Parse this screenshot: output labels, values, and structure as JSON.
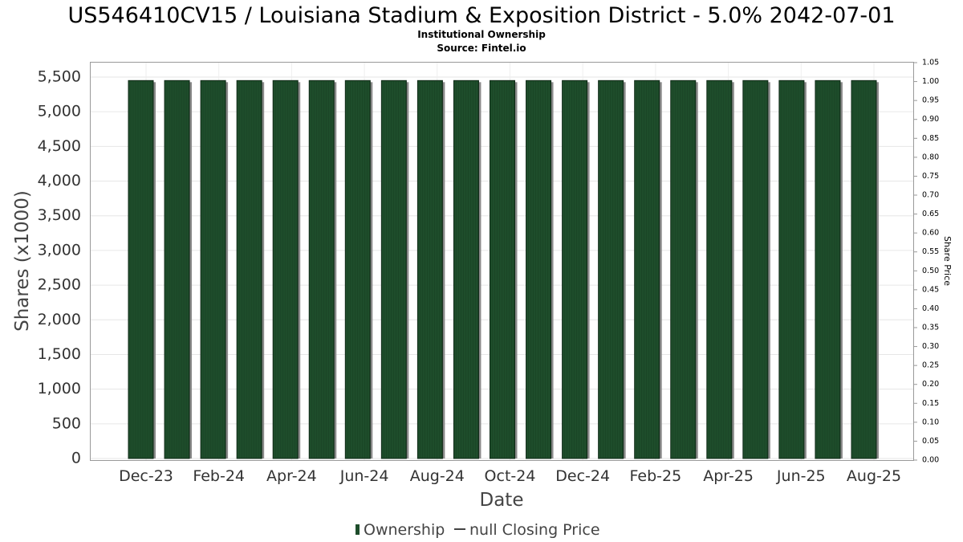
{
  "chart_data": {
    "type": "bar",
    "title": "US546410CV15 / Louisiana Stadium & Exposition District - 5.0% 2042-07-01",
    "subtitle": "Institutional Ownership",
    "source": "Source: Fintel.io",
    "xlabel": "Date",
    "ylabel": "Shares (x1000)",
    "y2label": "Share Price",
    "ylim": [
      0,
      5500
    ],
    "yticks": [
      "0",
      "500",
      "1,000",
      "1,500",
      "2,000",
      "2,500",
      "3,000",
      "3,500",
      "4,000",
      "4,500",
      "5,000",
      "5,500"
    ],
    "y2lim": [
      0,
      1.05
    ],
    "y2ticks": [
      "0.00",
      "0.05",
      "0.10",
      "0.15",
      "0.20",
      "0.25",
      "0.30",
      "0.35",
      "0.40",
      "0.45",
      "0.50",
      "0.55",
      "0.60",
      "0.65",
      "0.70",
      "0.75",
      "0.80",
      "0.85",
      "0.90",
      "0.95",
      "1.00",
      "1.05"
    ],
    "xtick_labels": [
      "Dec-23",
      "Feb-24",
      "Apr-24",
      "Jun-24",
      "Aug-24",
      "Oct-24",
      "Dec-24",
      "Feb-25",
      "Apr-25",
      "Jun-25",
      "Aug-25"
    ],
    "series": [
      {
        "name": "Ownership",
        "color": "#1e4d2b",
        "values": [
          5450,
          5450,
          5450,
          5450,
          5450,
          5450,
          5450,
          5450,
          5450,
          5450,
          5450,
          5450,
          5450,
          5450,
          5450,
          5450,
          5450,
          5450,
          5450,
          5450,
          5450
        ]
      }
    ],
    "legend": [
      {
        "label": "Ownership",
        "color": "#1e4d2b",
        "marker": "bar"
      },
      {
        "label": "null Closing Price",
        "color": "#444444",
        "marker": "line"
      }
    ],
    "legend_position": "bottom",
    "grid": true
  }
}
